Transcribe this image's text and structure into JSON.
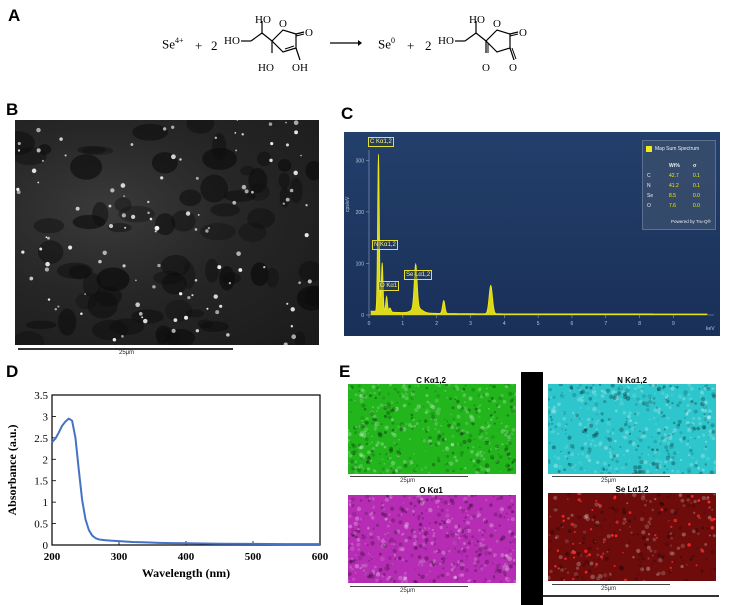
{
  "panels": {
    "a": "A",
    "b": "B",
    "c": "C",
    "d": "D",
    "e": "E"
  },
  "reaction": {
    "se4": "Se",
    "se4_sup": "4+",
    "plus1": "+",
    "coef1": "2",
    "plus2": "+",
    "se0": "Se",
    "se0_sup": "0",
    "coef2": "2",
    "atom_HO_top1": "HO",
    "atom_HO_left1": "HO",
    "atom_O_ring1": "O",
    "atom_O_carbonyl1": "O",
    "atom_HO_bottom1": "HO",
    "atom_OH_bottom1": "OH",
    "atom_HO_top2": "HO",
    "atom_HO_left2": "HO",
    "atom_O_ring2": "O",
    "atom_O_carbonyl2": "O",
    "atom_O_bottom_a": "O",
    "atom_O_bottom_b": "O"
  },
  "sem": {
    "scale_label": "25μm"
  },
  "eds": {
    "ylabel": "cps/eV",
    "xunit": "keV",
    "legend_title": "Map Sum Spectrum",
    "legend_headers": [
      "Wt%",
      "σ"
    ],
    "legend_rows": [
      {
        "el": "C",
        "wt": "42.7",
        "sigma": "0.1"
      },
      {
        "el": "N",
        "wt": "41.2",
        "sigma": "0.1"
      },
      {
        "el": "Se",
        "wt": "8.5",
        "sigma": "0.0"
      },
      {
        "el": "O",
        "wt": "7.6",
        "sigma": "0.0"
      }
    ],
    "legend_footer": "Powered by Tru-Q®",
    "peak_labels": {
      "c": "C Kα1,2",
      "n": "N Kα1,2",
      "o": "O Kα1",
      "se": "Se Lα1,2"
    },
    "yticks": [
      "0",
      "100",
      "200",
      "300"
    ],
    "xticks": [
      "0",
      "1",
      "2",
      "3",
      "4",
      "5",
      "6",
      "7",
      "8",
      "9"
    ],
    "colors": {
      "background": "#1d3660",
      "spectrum": "#f2ea14"
    }
  },
  "chart_data": {
    "type": "line",
    "title": "",
    "xlabel": "Wavelength (nm)",
    "ylabel": "Absorbance (a.u.)",
    "xlim": [
      200,
      600
    ],
    "ylim": [
      0,
      3.5
    ],
    "xticks": [
      "200",
      "300",
      "400",
      "500",
      "600"
    ],
    "yticks": [
      "0",
      "0.5",
      "1",
      "1.5",
      "2",
      "2.5",
      "3",
      "3.5"
    ],
    "series": [
      {
        "color": "#4472c4",
        "x": [
          200,
          205,
          210,
          215,
          220,
          225,
          230,
          235,
          240,
          245,
          250,
          255,
          260,
          265,
          270,
          275,
          280,
          290,
          300,
          320,
          340,
          360,
          380,
          400,
          450,
          500,
          550,
          600
        ],
        "y": [
          2.4,
          2.48,
          2.62,
          2.78,
          2.88,
          2.95,
          2.9,
          2.5,
          1.75,
          1.05,
          0.6,
          0.35,
          0.22,
          0.16,
          0.13,
          0.12,
          0.11,
          0.1,
          0.09,
          0.07,
          0.06,
          0.05,
          0.045,
          0.04,
          0.03,
          0.025,
          0.02,
          0.02
        ]
      }
    ]
  },
  "maps": [
    {
      "title": "C Kα1,2",
      "scale": "25μm",
      "color": "#22b61c"
    },
    {
      "title": "N Kα1,2",
      "scale": "25μm",
      "color": "#2cc6cc"
    },
    {
      "title": "O Kα1",
      "scale": "25μm",
      "color": "#b62cb4"
    },
    {
      "title": "Se Lα1,2",
      "scale": "25μm",
      "color": "#6e0c0c"
    }
  ]
}
